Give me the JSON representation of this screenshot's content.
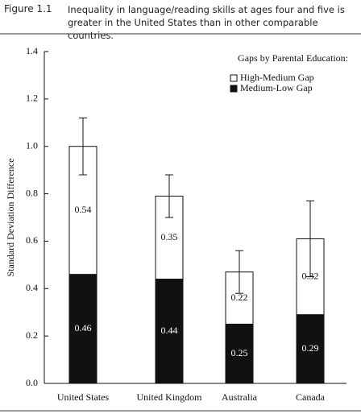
{
  "chart_data": {
    "type": "stacked-bar",
    "figure_label": "Figure 1.1",
    "title": "Inequality in language/reading skills at ages four and five is greater in the United States than in other comparable countries.",
    "y_label": "Standard Deviation Difference",
    "legend_title": "Gaps by Parental Education:",
    "categories": [
      "United States",
      "United Kingdom",
      "Australia",
      "Canada"
    ],
    "series": [
      {
        "name": "Medium-Low Gap",
        "color": "#111111",
        "values": [
          0.46,
          0.44,
          0.25,
          0.29
        ]
      },
      {
        "name": "High-Medium Gap",
        "color": "#ffffff",
        "values": [
          0.54,
          0.35,
          0.22,
          0.32
        ],
        "errors": [
          0.12,
          0.09,
          0.09,
          0.16
        ]
      }
    ],
    "ylim": [
      0,
      1.4
    ],
    "yticks": [
      {
        "value": 0,
        "label": "0.0"
      },
      0.2,
      0.4,
      0.6,
      0.8,
      {
        "value": 1,
        "label": "1.0"
      },
      1.2,
      1.4
    ]
  }
}
